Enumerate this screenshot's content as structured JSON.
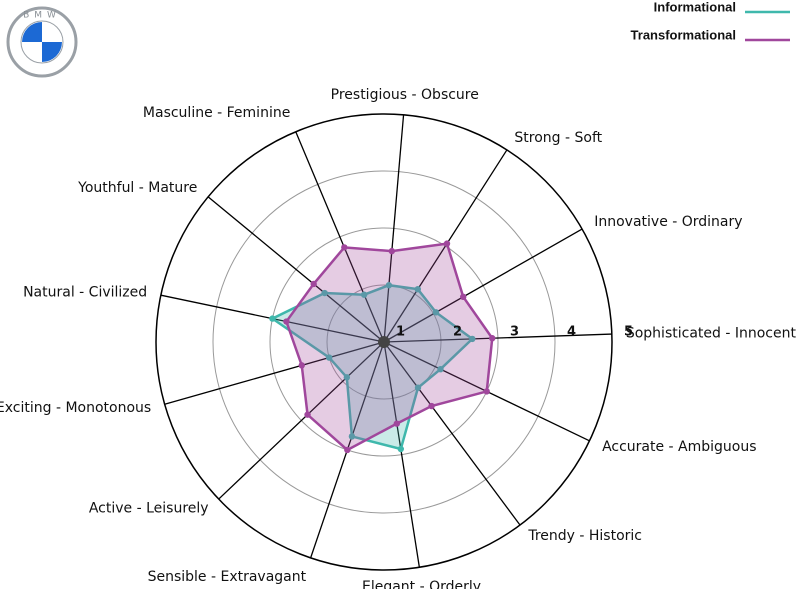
{
  "logo": "BMW",
  "chart_data": {
    "type": "radar",
    "categories": [
      "Sophisticated - Innocent",
      "Innovative - Ordinary",
      "Strong - Soft",
      "Prestigious - Obscure",
      "Masculine - Feminine",
      "Youthful - Mature",
      "Natural - Civilized",
      "Exciting - Monotonous",
      "Active - Leisurely",
      "Sensible - Extravagant",
      "Elegant - Orderly",
      "Trendy - Historic",
      "Accurate - Ambiguous"
    ],
    "series": [
      {
        "name": "Informational",
        "color": "#3fb8ac",
        "values": [
          2.55,
          2.05,
          2.1,
          2.0,
          1.9,
          2.35,
          3.0,
          2.0,
          1.9,
          2.75,
          2.9,
          2.0,
          2.1
        ]
      },
      {
        "name": "Transformational",
        "color": "#a0479c",
        "values": [
          2.9,
          2.6,
          3.05,
          2.6,
          2.8,
          2.6,
          2.75,
          2.5,
          2.85,
          3.0,
          2.45,
          2.4,
          3.0
        ]
      }
    ],
    "rlim": [
      1,
      5
    ],
    "rticks": [
      1,
      2,
      3,
      4,
      5
    ],
    "legend": "upper right"
  }
}
